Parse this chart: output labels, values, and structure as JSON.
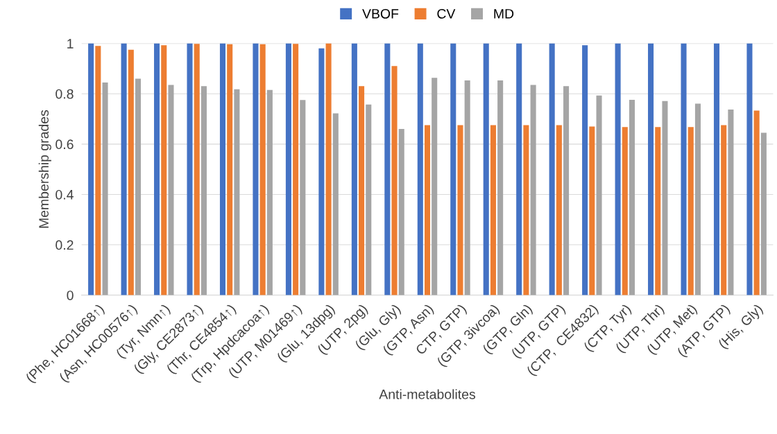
{
  "chart_data": {
    "type": "bar",
    "xlabel": "Anti-metabolites",
    "ylabel": "Membership grades",
    "categories": [
      "(Phe, HC01668↑)",
      "(Asn, HC00576↑)",
      "(Tyr, Nmn↑)",
      "(Gly, CE2873↑)",
      "(Thr, CE4854↑)",
      "(Trp, Hpdcacoa↑)",
      "(UTP, M01469↑)",
      "(Glu, 13dpg)",
      "(UTP, 2pg)",
      "(Glu, Gly)",
      "(GTP, Asn)",
      "CTP, GTP)",
      "(GTP, 3ivcoa)",
      "(GTP, Gln)",
      "(UTP, GTP)",
      "(CTP,  CE4832)",
      "(CTP, Tyr)",
      "(UTP, Thr)",
      "(UTP, Met)",
      "(ATP, GTP)",
      "(His, Gly)"
    ],
    "series": [
      {
        "name": "VBOF",
        "color": "#4472c4",
        "values": [
          1,
          1,
          1,
          1,
          1,
          1,
          1,
          0.98,
          1,
          1,
          1,
          1,
          1,
          1,
          1,
          0.993,
          1,
          1,
          1,
          1,
          1
        ]
      },
      {
        "name": "CV",
        "color": "#ed7d31",
        "values": [
          0.99,
          0.975,
          0.993,
          0.998,
          0.997,
          0.997,
          0.998,
          1,
          0.83,
          0.91,
          0.675,
          0.675,
          0.675,
          0.675,
          0.675,
          0.67,
          0.668,
          0.668,
          0.668,
          0.675,
          0.733
        ]
      },
      {
        "name": "MD",
        "color": "#a5a5a5",
        "values": [
          0.845,
          0.86,
          0.835,
          0.83,
          0.818,
          0.815,
          0.775,
          0.722,
          0.757,
          0.66,
          0.863,
          0.853,
          0.853,
          0.835,
          0.83,
          0.793,
          0.776,
          0.771,
          0.761,
          0.737,
          0.645
        ]
      }
    ],
    "ylim": [
      0,
      1
    ],
    "yticks": [
      0,
      0.2,
      0.4,
      0.6,
      0.8,
      1
    ],
    "grid": "y",
    "legend": "top"
  }
}
